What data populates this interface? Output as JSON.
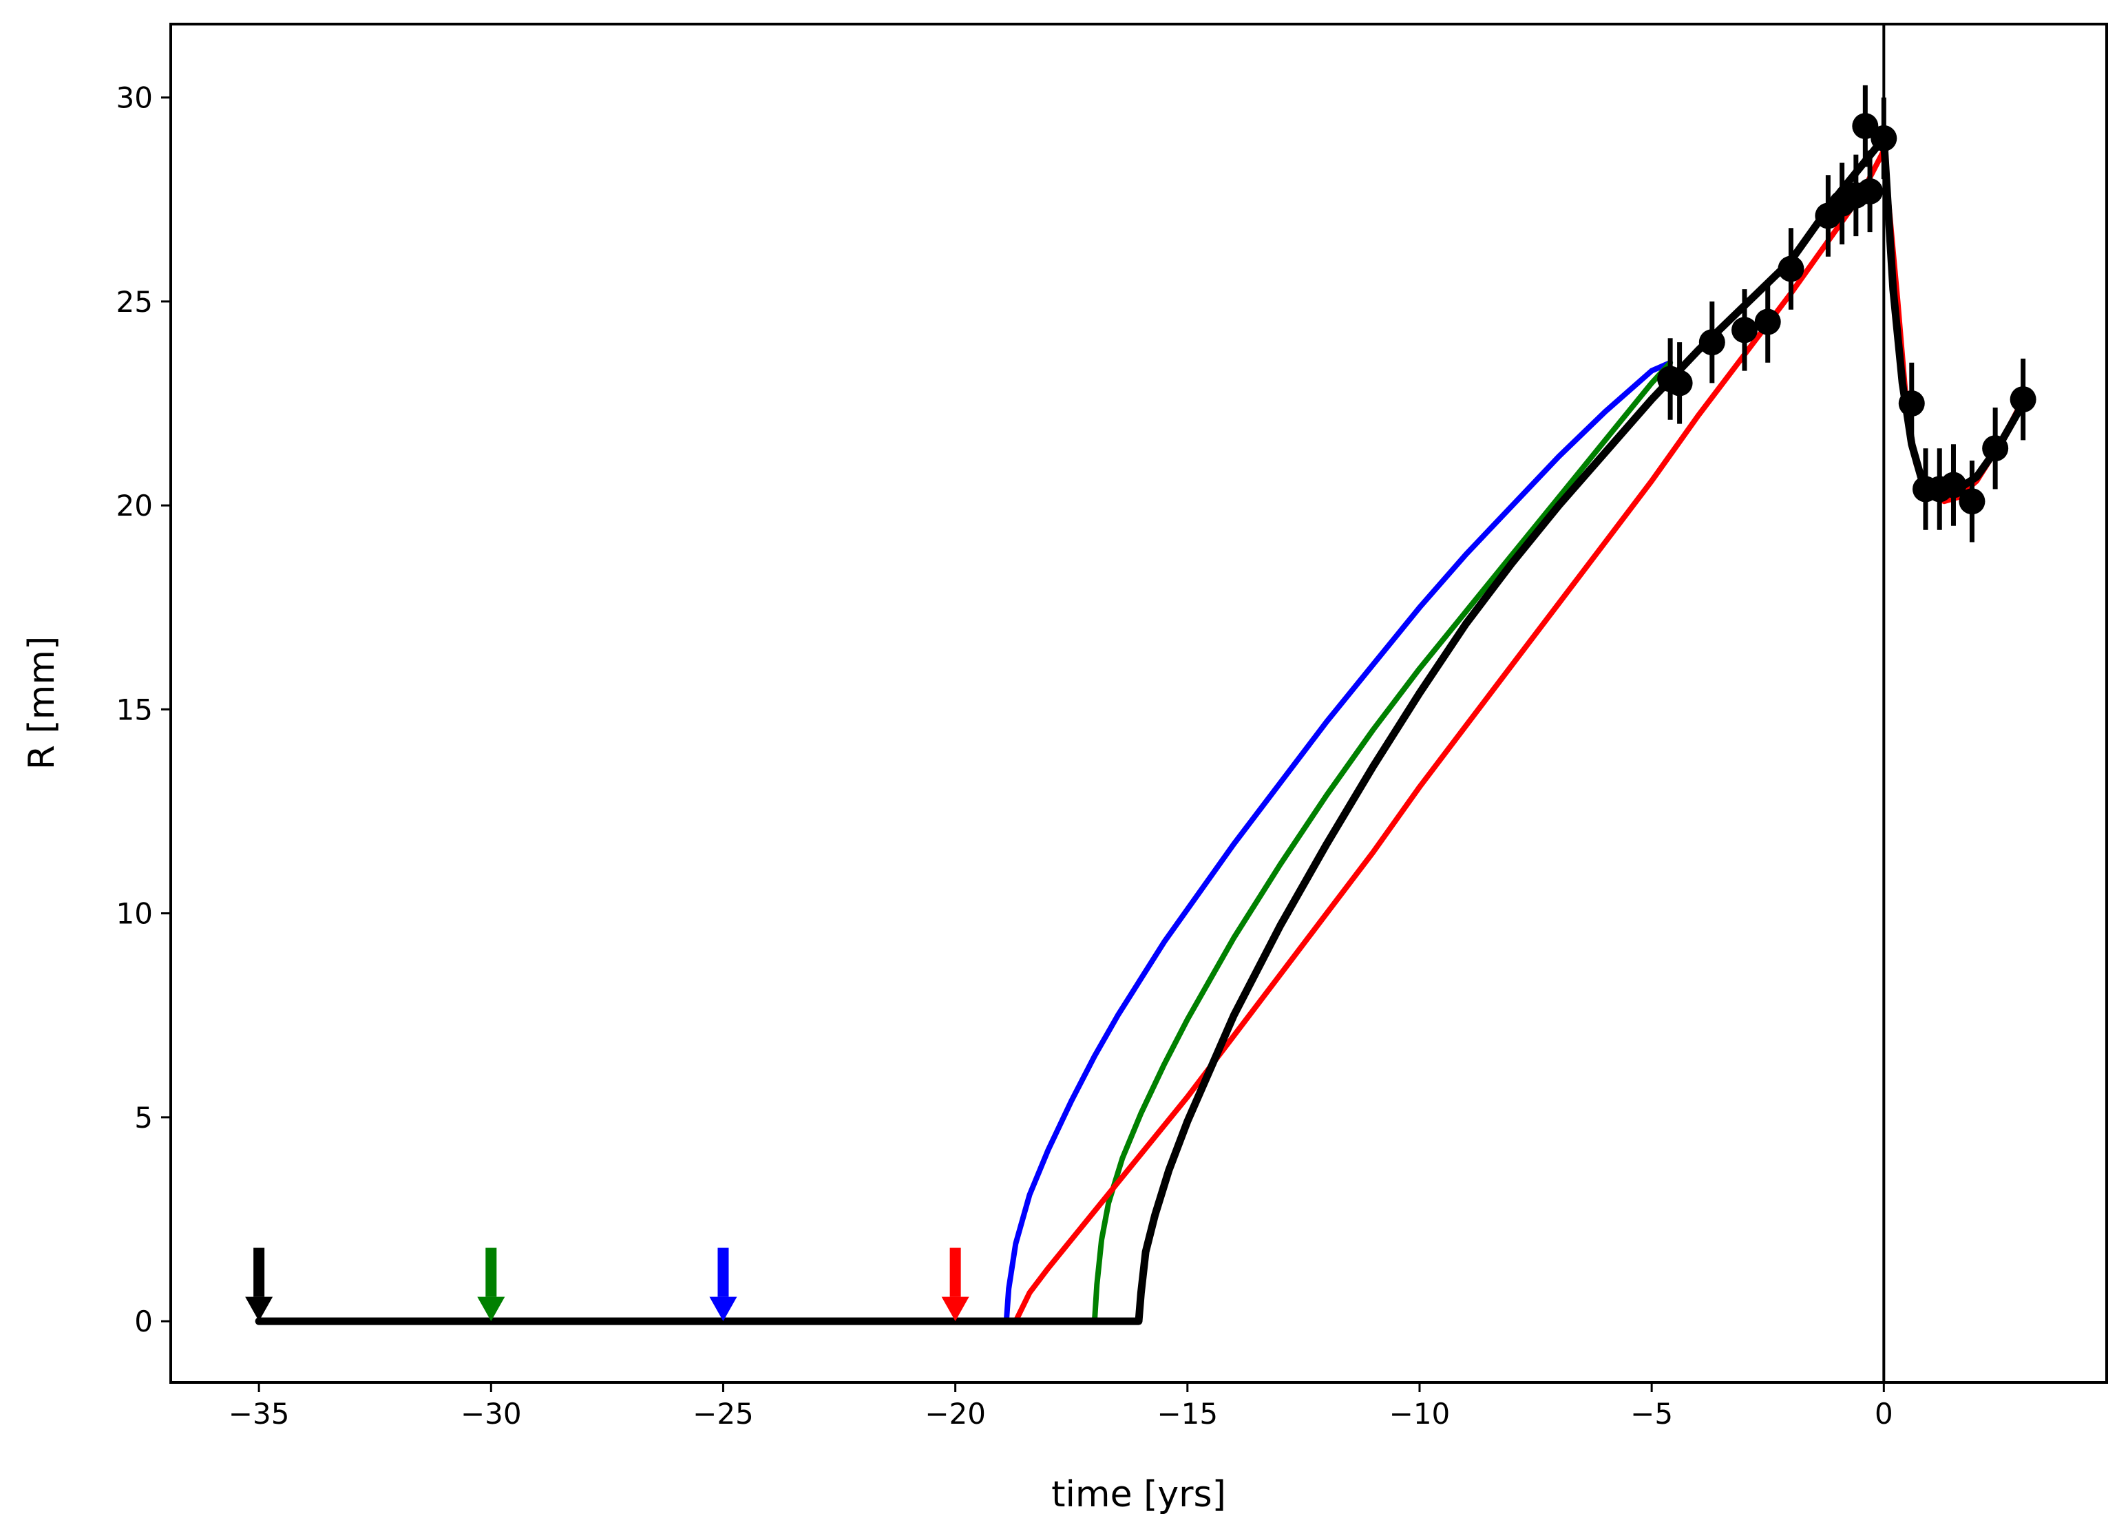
{
  "chart_data": {
    "type": "line",
    "xlabel": "time [yrs]",
    "ylabel": "R [mm]",
    "xlim": [
      -36.9,
      4.8
    ],
    "ylim": [
      -1.5,
      31.8
    ],
    "grid": false,
    "x_ticks": [
      -35,
      -30,
      -25,
      -20,
      -15,
      -10,
      -5,
      0
    ],
    "x_tick_labels": [
      "−35",
      "−30",
      "−25",
      "−20",
      "−15",
      "−10",
      "−5",
      "0"
    ],
    "y_ticks": [
      0,
      5,
      10,
      15,
      20,
      25,
      30
    ],
    "y_tick_labels": [
      "0",
      "5",
      "10",
      "15",
      "20",
      "25",
      "30"
    ],
    "vline_x": 0,
    "series": [
      {
        "color": "#0000ff",
        "x": [
          -35,
          -18.9,
          -18.85,
          -18.7,
          -18.4,
          -18.0,
          -17.5,
          -17.0,
          -16.5,
          -16.0,
          -15.5,
          -15.0,
          -14.0,
          -13.0,
          -12.0,
          -11.0,
          -10.0,
          -9.0,
          -8.0,
          -7.0,
          -6.0,
          -5.0,
          -4.6
        ],
        "y": [
          0,
          0,
          0.8,
          1.9,
          3.1,
          4.2,
          5.4,
          6.5,
          7.5,
          8.4,
          9.3,
          10.1,
          11.7,
          13.2,
          14.7,
          16.1,
          17.5,
          18.8,
          20.0,
          21.2,
          22.3,
          23.3,
          23.5
        ]
      },
      {
        "color": "#008000",
        "x": [
          -35,
          -17.0,
          -16.95,
          -16.85,
          -16.7,
          -16.4,
          -16.0,
          -15.5,
          -15.0,
          -14.5,
          -14.0,
          -13.0,
          -12.0,
          -11.0,
          -10.0,
          -9.0,
          -8.0,
          -7.0,
          -6.0,
          -5.0,
          -4.6
        ],
        "y": [
          0,
          0,
          0.9,
          2.0,
          2.9,
          4.0,
          5.1,
          6.3,
          7.4,
          8.4,
          9.4,
          11.2,
          12.9,
          14.5,
          16.0,
          17.4,
          18.8,
          20.2,
          21.6,
          23.0,
          23.5
        ]
      },
      {
        "color": "#ff0000",
        "x": [
          -35,
          -18.7,
          -18.4,
          -18.0,
          -17.5,
          -17.0,
          -16.0,
          -15.0,
          -14.0,
          -13.0,
          -12.0,
          -11.0,
          -10.0,
          -9.0,
          -8.0,
          -7.0,
          -6.0,
          -5.0,
          -4.0,
          -3.0,
          -2.0,
          -1.0,
          -0.5,
          0.0,
          0.3,
          0.5,
          0.7,
          1.0,
          1.3,
          1.6,
          2.0,
          2.5,
          3.0
        ],
        "y": [
          0,
          0,
          0.7,
          1.3,
          2.0,
          2.7,
          4.1,
          5.5,
          7.0,
          8.5,
          10.0,
          11.5,
          13.1,
          14.6,
          16.1,
          17.6,
          19.1,
          20.6,
          22.2,
          23.7,
          25.2,
          26.8,
          27.6,
          28.7,
          25.0,
          22.3,
          21.0,
          20.3,
          20.1,
          20.2,
          20.6,
          21.5,
          22.6
        ]
      },
      {
        "color": "#000000",
        "x": [
          -35,
          -16.05,
          -16.0,
          -15.9,
          -15.7,
          -15.4,
          -15.0,
          -14.5,
          -14.0,
          -13.0,
          -12.0,
          -11.0,
          -10.0,
          -9.0,
          -8.0,
          -7.0,
          -6.0,
          -5.0,
          -4.0,
          -3.0,
          -2.0,
          -1.0,
          -0.5,
          0.0,
          0.2,
          0.4,
          0.6,
          0.8,
          1.0,
          1.3,
          1.6,
          2.0,
          2.5,
          3.0
        ],
        "y": [
          0,
          0,
          0.7,
          1.7,
          2.6,
          3.7,
          4.9,
          6.2,
          7.5,
          9.7,
          11.7,
          13.6,
          15.4,
          17.1,
          18.6,
          20.0,
          21.3,
          22.6,
          23.8,
          24.9,
          26.0,
          27.6,
          28.3,
          29.0,
          25.3,
          23.0,
          21.5,
          20.7,
          20.4,
          20.3,
          20.4,
          20.7,
          21.5,
          22.5
        ]
      }
    ],
    "data_points": {
      "color": "#000000",
      "x": [
        -4.6,
        -4.4,
        -3.7,
        -3.0,
        -2.5,
        -2.0,
        -1.2,
        -0.9,
        -0.6,
        -0.4,
        -0.3,
        0.0,
        0.6,
        0.9,
        1.2,
        1.5,
        1.9,
        2.4,
        3.0
      ],
      "y": [
        23.1,
        23.0,
        24.0,
        24.3,
        24.5,
        25.8,
        27.1,
        27.4,
        27.6,
        29.3,
        27.7,
        29.0,
        22.5,
        20.4,
        20.4,
        20.5,
        20.1,
        21.4,
        22.6
      ],
      "yerr": [
        1.0,
        1.0,
        1.0,
        1.0,
        1.0,
        1.0,
        1.0,
        1.0,
        1.0,
        1.0,
        1.0,
        1.0,
        1.0,
        1.0,
        1.0,
        1.0,
        1.0,
        1.0,
        1.0
      ]
    },
    "arrows": [
      {
        "x": -35,
        "color": "#000000"
      },
      {
        "x": -30,
        "color": "#008000"
      },
      {
        "x": -25,
        "color": "#0000ff"
      },
      {
        "x": -20,
        "color": "#ff0000"
      }
    ]
  }
}
